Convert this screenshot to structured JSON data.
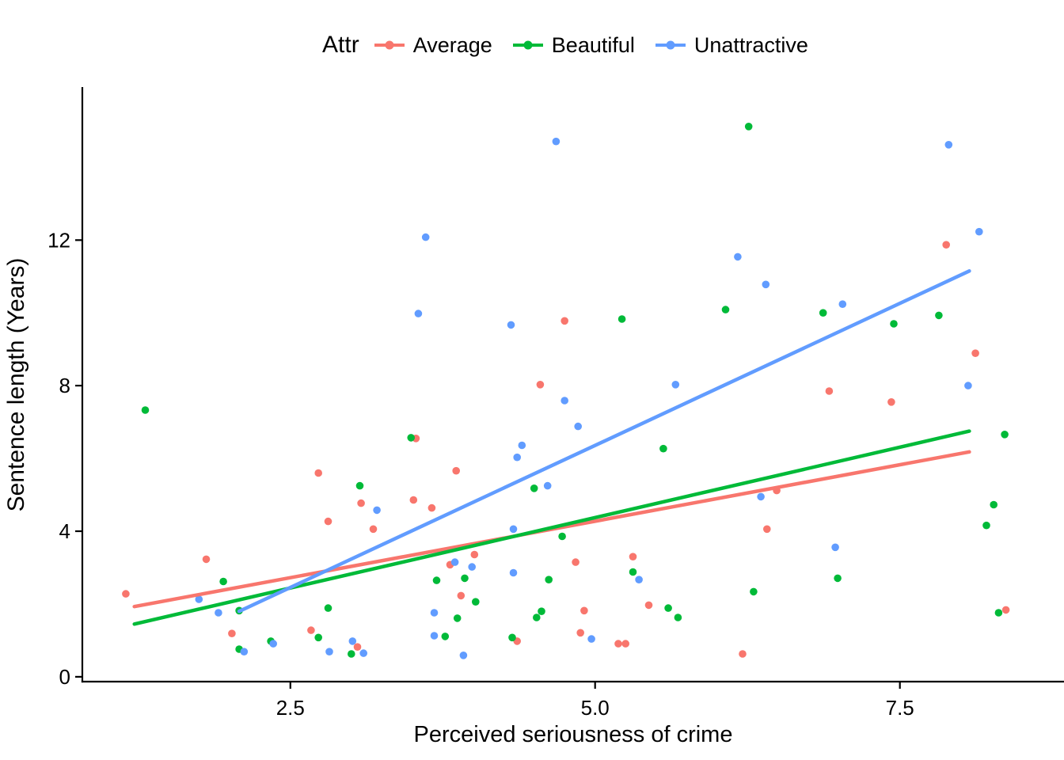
{
  "chart_data": {
    "type": "scatter",
    "title": "",
    "xlabel": "Perceived seriousness of crime",
    "ylabel": "Sentence length (Years)",
    "xlim": [
      0.8,
      8.84
    ],
    "ylim": [
      -0.11,
      16.16
    ],
    "grid": false,
    "x_ticks": {
      "values": [
        2.5,
        5.0,
        7.5
      ],
      "labels": [
        "2.5",
        "5.0",
        "7.5"
      ]
    },
    "y_ticks": {
      "values": [
        0,
        4,
        8,
        12
      ],
      "labels": [
        "0",
        "4",
        "8",
        "12"
      ]
    },
    "legend": {
      "title": "Attr",
      "position": "top"
    },
    "series": [
      {
        "name": "Average",
        "color": "#F8766D",
        "points": [
          [
            1.15,
            2.28
          ],
          [
            1.81,
            3.23
          ],
          [
            2.02,
            1.19
          ],
          [
            2.67,
            1.28
          ],
          [
            2.73,
            5.6
          ],
          [
            2.81,
            4.27
          ],
          [
            3.05,
            0.82
          ],
          [
            3.08,
            4.77
          ],
          [
            3.18,
            4.06
          ],
          [
            3.51,
            4.86
          ],
          [
            3.53,
            6.55
          ],
          [
            3.66,
            4.64
          ],
          [
            3.81,
            3.08
          ],
          [
            3.86,
            5.66
          ],
          [
            3.9,
            2.23
          ],
          [
            4.01,
            3.36
          ],
          [
            4.36,
            0.98
          ],
          [
            4.55,
            8.03
          ],
          [
            4.75,
            9.78
          ],
          [
            4.84,
            3.15
          ],
          [
            4.88,
            1.21
          ],
          [
            4.91,
            1.82
          ],
          [
            5.19,
            0.91
          ],
          [
            5.25,
            0.91
          ],
          [
            5.31,
            3.3
          ],
          [
            5.44,
            1.97
          ],
          [
            6.21,
            0.63
          ],
          [
            6.41,
            4.06
          ],
          [
            6.49,
            5.12
          ],
          [
            6.92,
            7.85
          ],
          [
            7.43,
            7.55
          ],
          [
            7.88,
            11.87
          ],
          [
            8.12,
            8.89
          ],
          [
            8.37,
            1.84
          ]
        ]
      },
      {
        "name": "Beautiful",
        "color": "#00BA38",
        "points": [
          [
            1.31,
            7.33
          ],
          [
            1.95,
            2.62
          ],
          [
            2.08,
            1.82
          ],
          [
            2.08,
            0.76
          ],
          [
            2.34,
            0.98
          ],
          [
            2.73,
            1.08
          ],
          [
            2.81,
            1.89
          ],
          [
            3.0,
            0.63
          ],
          [
            3.07,
            5.25
          ],
          [
            3.49,
            6.57
          ],
          [
            3.7,
            2.65
          ],
          [
            3.77,
            1.11
          ],
          [
            3.87,
            1.61
          ],
          [
            3.93,
            2.71
          ],
          [
            4.02,
            2.06
          ],
          [
            4.32,
            1.08
          ],
          [
            4.5,
            5.18
          ],
          [
            4.52,
            1.63
          ],
          [
            4.56,
            1.8
          ],
          [
            4.62,
            2.67
          ],
          [
            4.73,
            3.86
          ],
          [
            5.22,
            9.83
          ],
          [
            5.31,
            2.88
          ],
          [
            5.56,
            6.27
          ],
          [
            5.6,
            1.89
          ],
          [
            5.68,
            1.63
          ],
          [
            6.07,
            10.09
          ],
          [
            6.26,
            15.12
          ],
          [
            6.3,
            2.34
          ],
          [
            6.87,
            10.0
          ],
          [
            6.99,
            2.71
          ],
          [
            7.45,
            9.7
          ],
          [
            7.82,
            9.93
          ],
          [
            8.21,
            4.16
          ],
          [
            8.27,
            4.73
          ],
          [
            8.31,
            1.76
          ],
          [
            8.36,
            6.66
          ]
        ]
      },
      {
        "name": "Unattractive",
        "color": "#619CFF",
        "points": [
          [
            1.75,
            2.13
          ],
          [
            1.91,
            1.76
          ],
          [
            2.12,
            0.69
          ],
          [
            2.36,
            0.91
          ],
          [
            2.82,
            0.69
          ],
          [
            3.01,
            0.98
          ],
          [
            3.1,
            0.65
          ],
          [
            3.21,
            4.58
          ],
          [
            3.55,
            9.98
          ],
          [
            3.61,
            12.08
          ],
          [
            3.68,
            1.76
          ],
          [
            3.68,
            1.13
          ],
          [
            3.85,
            3.15
          ],
          [
            3.92,
            0.59
          ],
          [
            3.99,
            3.02
          ],
          [
            4.31,
            9.67
          ],
          [
            4.33,
            4.06
          ],
          [
            4.33,
            2.86
          ],
          [
            4.36,
            6.03
          ],
          [
            4.4,
            6.36
          ],
          [
            4.61,
            5.25
          ],
          [
            4.68,
            14.71
          ],
          [
            4.75,
            7.59
          ],
          [
            4.86,
            6.88
          ],
          [
            4.97,
            1.04
          ],
          [
            5.36,
            2.67
          ],
          [
            5.66,
            8.03
          ],
          [
            6.17,
            11.54
          ],
          [
            6.36,
            4.95
          ],
          [
            6.4,
            10.78
          ],
          [
            6.97,
            3.56
          ],
          [
            7.03,
            10.24
          ],
          [
            7.9,
            14.62
          ],
          [
            8.06,
            8.0
          ],
          [
            8.15,
            12.23
          ]
        ]
      }
    ],
    "trend_lines": [
      {
        "series": "Average",
        "color": "#F8766D",
        "x1": 1.22,
        "y1": 1.93,
        "x2": 8.07,
        "y2": 6.18
      },
      {
        "series": "Beautiful",
        "color": "#00BA38",
        "x1": 1.22,
        "y1": 1.45,
        "x2": 8.07,
        "y2": 6.75
      },
      {
        "series": "Unattractive",
        "color": "#619CFF",
        "x1": 2.08,
        "y1": 1.8,
        "x2": 8.07,
        "y2": 11.15
      }
    ]
  },
  "colors": {
    "axis": "#000000",
    "background": "#FFFFFF"
  }
}
